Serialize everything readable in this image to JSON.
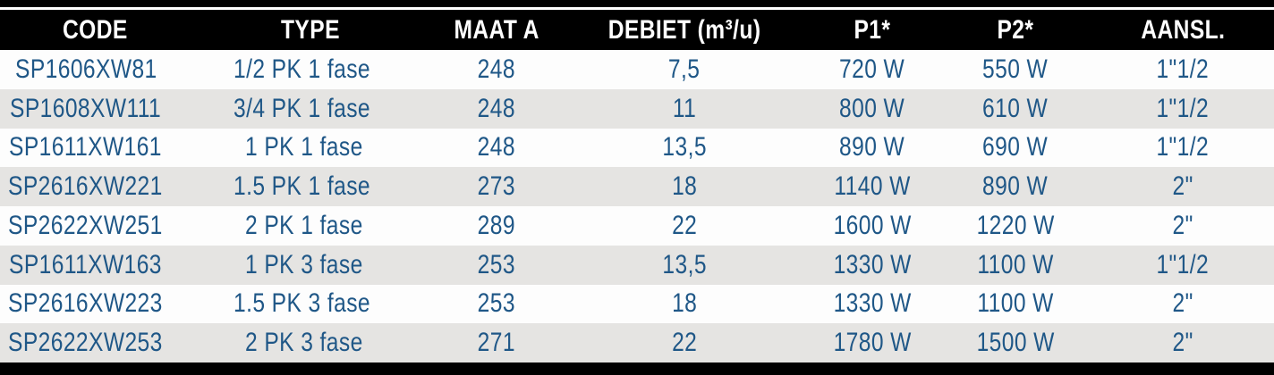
{
  "table": {
    "columns": [
      {
        "key": "code",
        "label": "CODE"
      },
      {
        "key": "type",
        "label": "TYPE"
      },
      {
        "key": "maat_a",
        "label": "MAAT A"
      },
      {
        "key": "debiet",
        "label": "DEBIET (m³/u)"
      },
      {
        "key": "p1",
        "label": "P1*"
      },
      {
        "key": "p2",
        "label": "P2*"
      },
      {
        "key": "aansl",
        "label": "AANSL."
      }
    ],
    "rows": [
      {
        "code": "SP1606XW81",
        "type": "1/2 PK 1 fase",
        "maat_a": "248",
        "debiet": "7,5",
        "p1": "720 W",
        "p2": "550 W",
        "aansl": "1\"1/2"
      },
      {
        "code": "SP1608XW111",
        "type": "3/4 PK 1 fase",
        "maat_a": "248",
        "debiet": "11",
        "p1": "800 W",
        "p2": "610 W",
        "aansl": "1\"1/2"
      },
      {
        "code": "SP1611XW161",
        "type": "1 PK 1 fase",
        "maat_a": "248",
        "debiet": "13,5",
        "p1": "890 W",
        "p2": "690 W",
        "aansl": "1\"1/2"
      },
      {
        "code": "SP2616XW221",
        "type": "1.5 PK 1 fase",
        "maat_a": "273",
        "debiet": "18",
        "p1": "1140 W",
        "p2": "890 W",
        "aansl": "2\""
      },
      {
        "code": "SP2622XW251",
        "type": "2 PK 1 fase",
        "maat_a": "289",
        "debiet": "22",
        "p1": "1600 W",
        "p2": "1220 W",
        "aansl": "2\""
      },
      {
        "code": "SP1611XW163",
        "type": "1 PK 3 fase",
        "maat_a": "253",
        "debiet": "13,5",
        "p1": "1330 W",
        "p2": "1100 W",
        "aansl": "1\"1/2"
      },
      {
        "code": "SP2616XW223",
        "type": "1.5 PK 3 fase",
        "maat_a": "253",
        "debiet": "18",
        "p1": "1330 W",
        "p2": "1100 W",
        "aansl": "2\""
      },
      {
        "code": "SP2622XW253",
        "type": "2 PK 3 fase",
        "maat_a": "271",
        "debiet": "22",
        "p1": "1780 W",
        "p2": "1500 W",
        "aansl": "2\""
      }
    ],
    "colors": {
      "header_bg": "#000000",
      "header_text": "#ffffff",
      "row_text": "#1f5787",
      "row_alt_bg": "#e5e4e2",
      "row_bg": "#fdfdfd",
      "rule": "#000000"
    }
  }
}
